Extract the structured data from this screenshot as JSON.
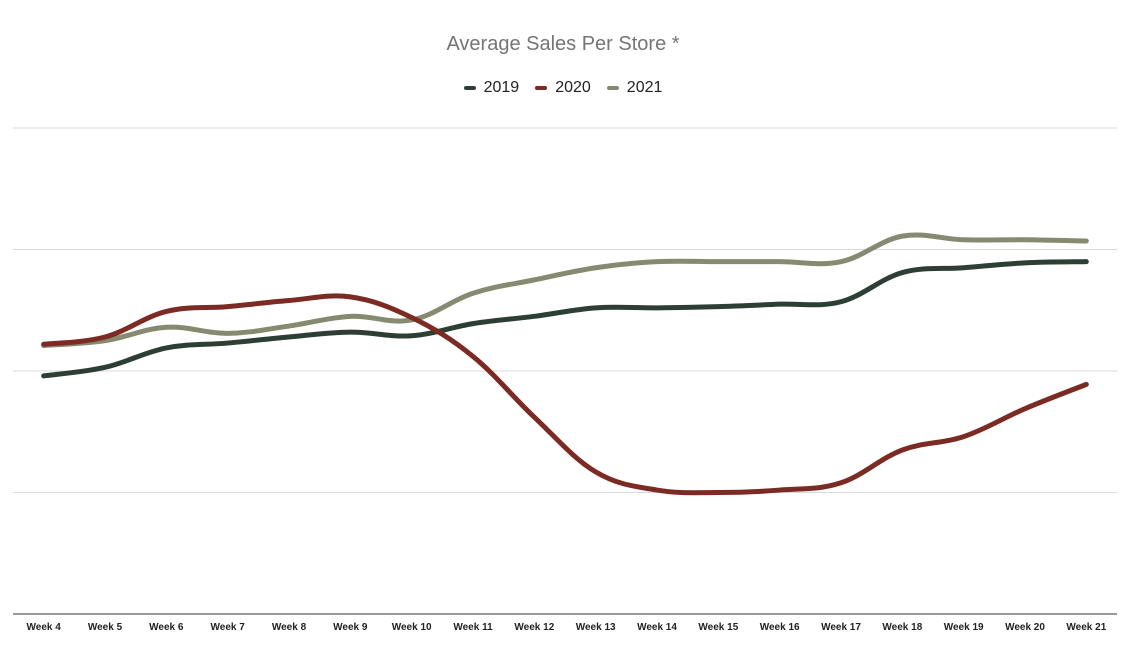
{
  "colors": {
    "2019": "#2d3e35",
    "2020": "#7c2a24",
    "2021": "#858a70",
    "grid": "#d9d9d9",
    "axis": "#333333"
  },
  "chart_data": {
    "type": "line",
    "title": "Average Sales Per Store *",
    "xlabel": "",
    "ylabel": "",
    "legend_position": "top",
    "grid": true,
    "y_tick_labels_shown": false,
    "ylim": [
      0,
      4
    ],
    "categories": [
      "Week 4",
      "Week 5",
      "Week 6",
      "Week 7",
      "Week 8",
      "Week 9",
      "Week 10",
      "Week 11",
      "Week 12",
      "Week 13",
      "Week 14",
      "Week 15",
      "Week 16",
      "Week 17",
      "Week 18",
      "Week 19",
      "Week 20",
      "Week 21"
    ],
    "series": [
      {
        "name": "2019",
        "color": "#2d3e35",
        "values": [
          1.96,
          2.03,
          2.19,
          2.23,
          2.28,
          2.32,
          2.29,
          2.39,
          2.45,
          2.52,
          2.52,
          2.53,
          2.55,
          2.57,
          2.81,
          2.85,
          2.89,
          2.9
        ]
      },
      {
        "name": "2020",
        "color": "#7c2a24",
        "values": [
          2.22,
          2.28,
          2.49,
          2.53,
          2.58,
          2.61,
          2.44,
          2.12,
          1.62,
          1.17,
          1.02,
          1.0,
          1.02,
          1.08,
          1.35,
          1.46,
          1.69,
          1.89
        ]
      },
      {
        "name": "2021",
        "color": "#858a70",
        "values": [
          2.21,
          2.25,
          2.36,
          2.31,
          2.37,
          2.45,
          2.42,
          2.64,
          2.75,
          2.85,
          2.9,
          2.9,
          2.9,
          2.9,
          3.11,
          3.08,
          3.08,
          3.07
        ]
      }
    ]
  }
}
